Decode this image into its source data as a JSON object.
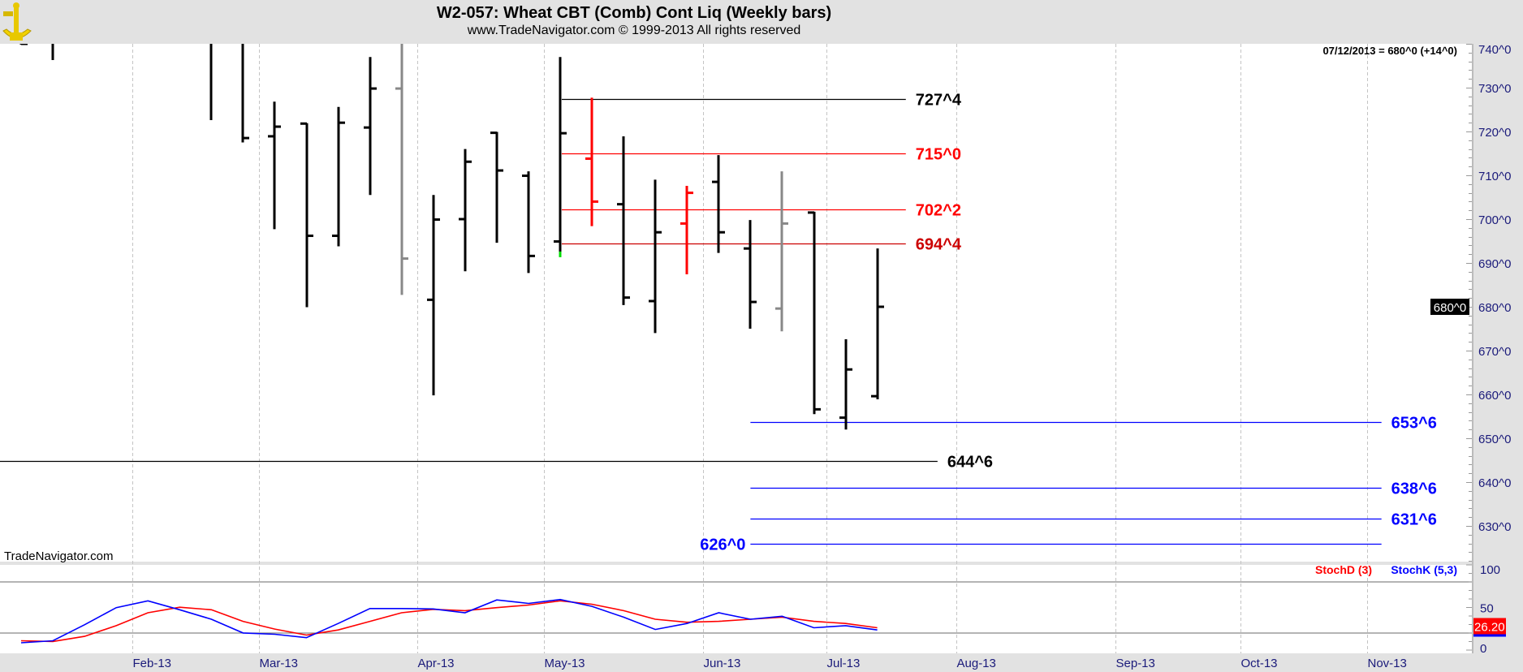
{
  "header": {
    "title": "W2-057:  Wheat CBT (Comb) Cont Liq  (Weekly bars)",
    "subtitle": "www.TradeNavigator.com © 1999-2013 All rights reserved",
    "logo_text": "TradeNavigator"
  },
  "colors": {
    "header_bg": "#e2e2e2",
    "bar": "#000000",
    "bar_red": "#ff0000",
    "bar_gray": "#888888",
    "axis_text": "#1a1a7a",
    "blue": "#0000ff",
    "red": "#ff0000",
    "dark_red": "#cc0000",
    "green": "#00dd00"
  },
  "readout": "07/12/2013 = 680^0 (+14^0)",
  "watermark": "TradeNavigator.com",
  "chart_data": {
    "type": "ohlc",
    "title": "W2-057:  Wheat CBT (Comb) Cont Liq  (Weekly bars)",
    "price_axis": {
      "ylim": [
        620,
        740
      ],
      "ticks": [
        {
          "value": 740,
          "label": "740^0"
        },
        {
          "value": 730,
          "label": "730^0"
        },
        {
          "value": 720,
          "label": "720^0"
        },
        {
          "value": 710,
          "label": "710^0"
        },
        {
          "value": 700,
          "label": "700^0"
        },
        {
          "value": 690,
          "label": "690^0"
        },
        {
          "value": 680,
          "label": "680^0"
        },
        {
          "value": 670,
          "label": "670^0"
        },
        {
          "value": 660,
          "label": "660^0"
        },
        {
          "value": 650,
          "label": "650^0"
        },
        {
          "value": 640,
          "label": "640^0"
        },
        {
          "value": 630,
          "label": "630^0"
        }
      ],
      "last_price": {
        "value": 680,
        "label": "680^0"
      }
    },
    "x_axis": {
      "months": [
        {
          "label": "Feb-13",
          "week": 3.5
        },
        {
          "label": "Mar-13",
          "week": 7.5
        },
        {
          "label": "Apr-13",
          "week": 12.5
        },
        {
          "label": "May-13",
          "week": 16.5
        },
        {
          "label": "Jun-13",
          "week": 21.5
        },
        {
          "label": "Jul-13",
          "week": 25.4
        },
        {
          "label": "Aug-13",
          "week": 29.5
        },
        {
          "label": "Sep-13",
          "week": 34.5
        },
        {
          "label": "Oct-13",
          "week": 38.45
        },
        {
          "label": "Nov-13",
          "week": 42.45
        }
      ]
    },
    "bars": [
      {
        "week": 0,
        "open": 741,
        "high": 745,
        "low": 739.8,
        "close": 740,
        "color": "bar"
      },
      {
        "week": 1,
        "open": 742,
        "high": 746,
        "low": 736.3,
        "close": 741,
        "color": "bar"
      },
      {
        "week": 6,
        "open": 745,
        "high": 750,
        "low": 722.6,
        "close": 741,
        "color": "bar"
      },
      {
        "week": 7,
        "open": 745,
        "high": 750,
        "low": 717.5,
        "close": 718.5,
        "color": "bar"
      },
      {
        "week": 8,
        "open": 718.9,
        "high": 726.8,
        "low": 697.7,
        "close": 721.1,
        "color": "bar"
      },
      {
        "week": 9,
        "open": 721.8,
        "high": 721.9,
        "low": 679.9,
        "close": 696.2,
        "color": "bar"
      },
      {
        "week": 10,
        "open": 696.2,
        "high": 725.6,
        "low": 693.8,
        "close": 722,
        "color": "bar"
      },
      {
        "week": 11,
        "open": 720.9,
        "high": 737,
        "low": 705.5,
        "close": 729.8,
        "color": "bar"
      },
      {
        "week": 12,
        "open": 729.8,
        "high": 745,
        "low": 682.7,
        "close": 691,
        "color": "bar_gray"
      },
      {
        "week": 13,
        "open": 681.6,
        "high": 705.5,
        "low": 659.8,
        "close": 699.9,
        "color": "bar"
      },
      {
        "week": 14,
        "open": 700,
        "high": 716,
        "low": 688.1,
        "close": 713.1,
        "color": "bar"
      },
      {
        "week": 15,
        "open": 719.7,
        "high": 719.9,
        "low": 694.6,
        "close": 711.1,
        "color": "bar"
      },
      {
        "week": 16,
        "open": 709.9,
        "high": 710.9,
        "low": 687.7,
        "close": 691.6,
        "color": "bar"
      },
      {
        "week": 17,
        "open": 694.9,
        "high": 737,
        "low": 691.5,
        "close": 719.6,
        "color": "bar"
      },
      {
        "week": 18,
        "open": 713.8,
        "high": 727.7,
        "low": 698.4,
        "close": 704,
        "color": "bar_red"
      },
      {
        "week": 19,
        "open": 703.4,
        "high": 718.9,
        "low": 680.4,
        "close": 682.1,
        "color": "bar"
      },
      {
        "week": 20,
        "open": 681.3,
        "high": 709,
        "low": 674,
        "close": 697,
        "color": "bar"
      },
      {
        "week": 21,
        "open": 699,
        "high": 707.6,
        "low": 687.4,
        "close": 706,
        "color": "bar_red"
      },
      {
        "week": 22,
        "open": 708.5,
        "high": 714.6,
        "low": 692.3,
        "close": 697,
        "color": "bar"
      },
      {
        "week": 23,
        "open": 693.3,
        "high": 699.8,
        "low": 675,
        "close": 681.1,
        "color": "bar"
      },
      {
        "week": 24,
        "open": 679.6,
        "high": 710.9,
        "low": 674.4,
        "close": 699,
        "color": "bar_gray"
      },
      {
        "week": 25,
        "open": 701.5,
        "high": 701.7,
        "low": 655.5,
        "close": 656.6,
        "color": "bar"
      },
      {
        "week": 26,
        "open": 654.7,
        "high": 672.6,
        "low": 652,
        "close": 665.7,
        "color": "bar"
      },
      {
        "week": 27,
        "open": 659.6,
        "high": 693.3,
        "low": 658.9,
        "close": 680,
        "color": "bar"
      }
    ],
    "levels": [
      {
        "value": 727.5,
        "label": "727^4",
        "color": "bar",
        "from_week": 17.05,
        "to_week": 27.9,
        "label_side": "right"
      },
      {
        "value": 715,
        "label": "715^0",
        "color": "red",
        "from_week": 17.05,
        "to_week": 27.9,
        "label_side": "right"
      },
      {
        "value": 702.25,
        "label": "702^2",
        "color": "red",
        "from_week": 17.05,
        "to_week": 27.9,
        "label_side": "right"
      },
      {
        "value": 694.5,
        "label": "694^4",
        "color": "dark_red",
        "from_week": 17.05,
        "to_week": 27.9,
        "label_side": "right"
      },
      {
        "value": 653.75,
        "label": "653^6",
        "color": "blue",
        "from_week": 23,
        "to_week": 42.9,
        "label_side": "right"
      },
      {
        "value": 644.75,
        "label": "644^6",
        "color": "bar",
        "from_week": -0.7,
        "to_week": 28.9,
        "label_side": "right"
      },
      {
        "value": 638.75,
        "label": "638^6",
        "color": "blue",
        "from_week": 23,
        "to_week": 42.9,
        "label_side": "right"
      },
      {
        "value": 631.75,
        "label": "631^6",
        "color": "blue",
        "from_week": 23,
        "to_week": 42.9,
        "label_side": "right"
      },
      {
        "value": 626,
        "label": "626^0",
        "color": "blue",
        "from_week": 23,
        "to_week": 42.9,
        "label_side": "left"
      }
    ],
    "stochastic": {
      "ylim": [
        0,
        100
      ],
      "ticks": [
        {
          "value": 100,
          "label": "100"
        },
        {
          "value": 50,
          "label": "50"
        },
        {
          "value": 0,
          "label": "0"
        }
      ],
      "bands": [
        80,
        20
      ],
      "last_value": "26.20",
      "series": [
        {
          "name": "StochD (3)",
          "color": "red",
          "values": [
            11,
            10.1,
            16.1,
            28.7,
            43.8,
            50.3,
            47.3,
            33.7,
            24.7,
            17.6,
            23.6,
            33.7,
            43.8,
            47.8,
            46.3,
            49.8,
            52.9,
            57.8,
            53.8,
            46.3,
            36.2,
            32.7,
            33.7,
            36.2,
            38.7,
            33.7,
            31.2,
            26.2
          ]
        },
        {
          "name": "StochK (5,3)",
          "color": "blue",
          "values": [
            8.6,
            11,
            29.7,
            49.8,
            57.8,
            47.3,
            36.2,
            20.1,
            18.6,
            14.6,
            31.2,
            48.8,
            48.8,
            48.3,
            43.8,
            58.9,
            54.8,
            59.3,
            51.3,
            38.7,
            24.2,
            31.2,
            43.8,
            36.2,
            39.7,
            26.2,
            28.7,
            23.6
          ]
        }
      ]
    }
  }
}
